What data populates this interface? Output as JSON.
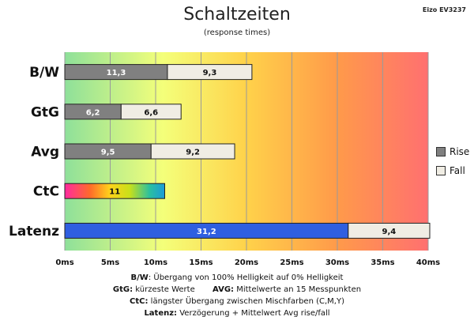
{
  "header": {
    "title": "Schaltzeiten",
    "subtitle": "(response times)",
    "model": "Eizo EV3237"
  },
  "legend": {
    "rise": "Rise",
    "fall": "Fall"
  },
  "notes": [
    {
      "k1": "B/W",
      "t1": ":  Übergang von 100% Helligkeit auf 0% Helligkeit"
    },
    {
      "k1": "GtG:",
      "t1": " kürzeste  Werte",
      "k2": "AVG:",
      "t2": " Mittelwerte  an 15 Messpunkten"
    },
    {
      "k1": "CtC:",
      "t1": " längster Übergang  zwischen Mischfarben (C,M,Y)"
    },
    {
      "k1": "Latenz:",
      "t1": " Verzögerung  + Mittelwert Avg rise/fall"
    }
  ],
  "colors": {
    "rise": "#808080",
    "fall": "#f0ede4",
    "latenz": "#2f5fe0"
  },
  "chart_data": {
    "type": "bar",
    "orientation": "horizontal",
    "stacked": true,
    "title": "Schaltzeiten",
    "subtitle": "(response times)",
    "categories": [
      "B/W",
      "GtG",
      "Avg",
      "CtC",
      "Latenz"
    ],
    "series": [
      {
        "name": "Rise",
        "values": [
          11.3,
          6.2,
          9.5,
          11,
          31.2
        ]
      },
      {
        "name": "Fall",
        "values": [
          9.3,
          6.6,
          9.2,
          null,
          9.4
        ]
      }
    ],
    "value_labels": [
      [
        "11,3",
        "9,3"
      ],
      [
        "6,2",
        "6,6"
      ],
      [
        "9,5",
        "9,2"
      ],
      [
        "11",
        ""
      ],
      [
        "31,2",
        "9,4"
      ]
    ],
    "xlim": [
      0,
      40
    ],
    "xticks": [
      0,
      5,
      10,
      15,
      20,
      25,
      30,
      35,
      40
    ],
    "xtick_labels": [
      "0ms",
      "5ms",
      "10ms",
      "15ms",
      "20ms",
      "25ms",
      "30ms",
      "35ms",
      "40ms"
    ],
    "grid": true,
    "legend_position": "right"
  }
}
